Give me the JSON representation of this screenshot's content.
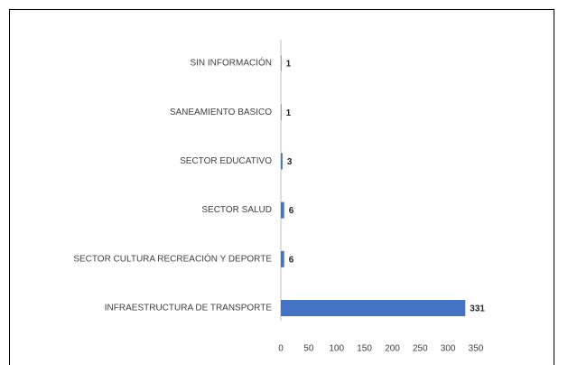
{
  "chart_data": {
    "type": "bar",
    "orientation": "horizontal",
    "categories": [
      "SIN INFORMACIÓN",
      "SANEAMIENTO BASICO",
      "SECTOR EDUCATIVO",
      "SECTOR SALUD",
      "SECTOR CULTURA RECREACIÓN Y DEPORTE",
      "INFRAESTRUCTURA DE TRANSPORTE"
    ],
    "values": [
      1,
      1,
      3,
      6,
      6,
      331
    ],
    "color": "#4472c4",
    "xlim": [
      0,
      350
    ],
    "xticks": [
      0,
      50,
      100,
      150,
      200,
      250,
      300,
      350
    ],
    "grid": false
  }
}
